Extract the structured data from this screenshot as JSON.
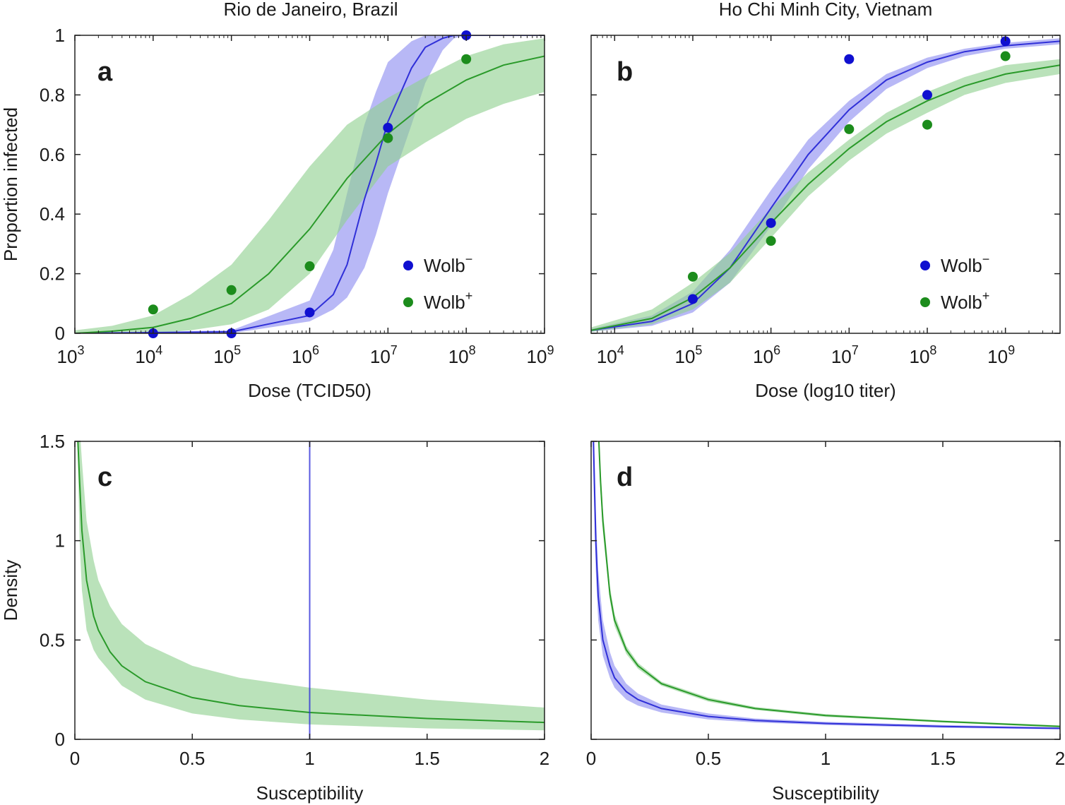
{
  "figure": {
    "col_titles": [
      "Rio de Janeiro, Brazil",
      "Ho Chi Minh City, Vietnam"
    ]
  },
  "colors": {
    "wolb_minus": "#1010d0",
    "wolb_plus": "#1c8c1c",
    "band_blue": "#8c8cf0",
    "band_green": "#8fd08f",
    "line_blue": "#3030d8",
    "line_green": "#2a9a2a"
  },
  "legend": {
    "wolb_minus": {
      "base": "Wolb",
      "sup": "−"
    },
    "wolb_plus": {
      "base": "Wolb",
      "sup": "+"
    }
  },
  "chart_data": [
    {
      "id": "a",
      "panel_label": "a",
      "type": "line",
      "title": "Rio de Janeiro, Brazil",
      "xlabel": "Dose (TCID50)",
      "ylabel": "Proportion infected",
      "xscale": "log10",
      "xlim": [
        1000,
        1000000000
      ],
      "ylim": [
        0,
        1
      ],
      "xticks": [
        {
          "base": "10",
          "exp": "3"
        },
        {
          "base": "10",
          "exp": "4"
        },
        {
          "base": "10",
          "exp": "5"
        },
        {
          "base": "10",
          "exp": "6"
        },
        {
          "base": "10",
          "exp": "7"
        },
        {
          "base": "10",
          "exp": "8"
        },
        {
          "base": "10",
          "exp": "9"
        }
      ],
      "xtick_values": [
        1000,
        10000,
        100000,
        1000000,
        10000000,
        100000000,
        1000000000
      ],
      "yticks": [
        "0",
        "0.2",
        "0.4",
        "0.6",
        "0.8",
        "1"
      ],
      "ytick_values": [
        0,
        0.2,
        0.4,
        0.6,
        0.8,
        1
      ],
      "legend_position": "lower-right",
      "series": [
        {
          "name": "Wolb−",
          "points": {
            "x": [
              10000,
              100000,
              1000000,
              10000000,
              100000000
            ],
            "y": [
              0.0,
              0.0,
              0.07,
              0.69,
              1.0
            ]
          },
          "fit": {
            "x": [
              1000,
              100000,
              1000000,
              2000000,
              3000000,
              5000000,
              7000000,
              10000000,
              20000000,
              30000000,
              50000000,
              70000000,
              100000000,
              1000000000
            ],
            "y": [
              0.0,
              0.005,
              0.06,
              0.13,
              0.23,
              0.45,
              0.57,
              0.71,
              0.89,
              0.96,
              0.99,
              1.0,
              1.0,
              1.0
            ]
          },
          "band_upper": [
            0.0,
            0.01,
            0.11,
            0.28,
            0.47,
            0.7,
            0.81,
            0.91,
            0.98,
            1.0,
            1.0,
            1.0,
            1.0,
            1.0
          ],
          "band_lower": [
            0.0,
            0.0,
            0.04,
            0.08,
            0.12,
            0.22,
            0.33,
            0.47,
            0.7,
            0.84,
            0.95,
            0.99,
            1.0,
            1.0
          ]
        },
        {
          "name": "Wolb+",
          "points": {
            "x": [
              10000,
              100000,
              1000000,
              10000000,
              100000000
            ],
            "y": [
              0.08,
              0.145,
              0.225,
              0.655,
              0.92
            ]
          },
          "fit": {
            "x": [
              1000,
              3000,
              10000,
              30000,
              100000,
              300000,
              1000000,
              3000000,
              10000000,
              30000000,
              100000000,
              300000000,
              1000000000
            ],
            "y": [
              0.0,
              0.007,
              0.02,
              0.05,
              0.1,
              0.2,
              0.35,
              0.52,
              0.67,
              0.77,
              0.85,
              0.9,
              0.93
            ]
          },
          "band_upper": [
            0.01,
            0.025,
            0.06,
            0.13,
            0.23,
            0.38,
            0.56,
            0.7,
            0.79,
            0.86,
            0.93,
            0.97,
            0.99
          ],
          "band_lower": [
            0.0,
            0.0,
            0.0,
            0.01,
            0.03,
            0.08,
            0.2,
            0.38,
            0.56,
            0.64,
            0.72,
            0.77,
            0.81
          ]
        }
      ]
    },
    {
      "id": "b",
      "panel_label": "b",
      "type": "line",
      "title": "Ho Chi Minh City, Vietnam",
      "xlabel": "Dose (log10 titer)",
      "ylabel": "",
      "xscale": "log10",
      "xlim": [
        5000,
        5000000000
      ],
      "ylim": [
        0,
        1
      ],
      "xticks": [
        {
          "base": "10",
          "exp": "4"
        },
        {
          "base": "10",
          "exp": "5"
        },
        {
          "base": "10",
          "exp": "6"
        },
        {
          "base": "10",
          "exp": "7"
        },
        {
          "base": "10",
          "exp": "8"
        },
        {
          "base": "10",
          "exp": "9"
        }
      ],
      "xtick_values": [
        10000,
        100000,
        1000000,
        10000000,
        100000000,
        1000000000
      ],
      "yticks": [],
      "ytick_values": [
        0,
        0.2,
        0.4,
        0.6,
        0.8,
        1
      ],
      "legend_position": "lower-right",
      "series": [
        {
          "name": "Wolb−",
          "points": {
            "x": [
              100000,
              1000000,
              10000000,
              100000000,
              1000000000
            ],
            "y": [
              0.115,
              0.37,
              0.92,
              0.8,
              0.98
            ]
          },
          "fit": {
            "x": [
              5000,
              30000,
              100000,
              300000,
              1000000,
              3000000,
              10000000,
              30000000,
              100000000,
              300000000,
              1000000000,
              5000000000
            ],
            "y": [
              0.01,
              0.04,
              0.1,
              0.22,
              0.42,
              0.6,
              0.75,
              0.85,
              0.91,
              0.945,
              0.965,
              0.98
            ]
          },
          "band_upper": [
            0.015,
            0.06,
            0.14,
            0.28,
            0.48,
            0.65,
            0.78,
            0.87,
            0.925,
            0.955,
            0.975,
            0.99
          ],
          "band_lower": [
            0.005,
            0.025,
            0.07,
            0.17,
            0.36,
            0.55,
            0.71,
            0.82,
            0.89,
            0.93,
            0.955,
            0.97
          ]
        },
        {
          "name": "Wolb+",
          "points": {
            "x": [
              100000,
              1000000,
              10000000,
              100000000,
              1000000000
            ],
            "y": [
              0.19,
              0.31,
              0.685,
              0.7,
              0.93
            ]
          },
          "fit": {
            "x": [
              5000,
              30000,
              100000,
              300000,
              1000000,
              3000000,
              10000000,
              30000000,
              100000000,
              300000000,
              1000000000,
              5000000000
            ],
            "y": [
              0.01,
              0.05,
              0.12,
              0.22,
              0.37,
              0.5,
              0.62,
              0.71,
              0.78,
              0.83,
              0.87,
              0.9
            ]
          },
          "band_upper": [
            0.02,
            0.08,
            0.17,
            0.27,
            0.42,
            0.54,
            0.65,
            0.74,
            0.81,
            0.86,
            0.9,
            0.92
          ],
          "band_lower": [
            0.005,
            0.03,
            0.08,
            0.17,
            0.32,
            0.46,
            0.58,
            0.67,
            0.74,
            0.8,
            0.84,
            0.87
          ]
        }
      ]
    },
    {
      "id": "c",
      "panel_label": "c",
      "type": "line",
      "title": "",
      "xlabel": "Susceptibility",
      "ylabel": "Density",
      "xscale": "linear",
      "xlim": [
        0,
        2
      ],
      "ylim": [
        0,
        1.5
      ],
      "xticks": [
        "0",
        "0.5",
        "1",
        "1.5",
        "2"
      ],
      "xtick_values": [
        0,
        0.5,
        1,
        1.5,
        2
      ],
      "yticks": [
        "0",
        "0.5",
        "1",
        "1.5"
      ],
      "ytick_values": [
        0,
        0.5,
        1,
        1.5
      ],
      "vline": {
        "name": "Wolb−",
        "x": 1
      },
      "series": [
        {
          "name": "Wolb+",
          "fit": {
            "x": [
              0.01,
              0.02,
              0.03,
              0.05,
              0.08,
              0.1,
              0.15,
              0.2,
              0.3,
              0.5,
              0.7,
              1.0,
              1.5,
              2.0
            ],
            "y": [
              1.6,
              1.3,
              1.05,
              0.8,
              0.62,
              0.55,
              0.44,
              0.37,
              0.29,
              0.21,
              0.17,
              0.135,
              0.105,
              0.085
            ]
          },
          "band_upper": [
            1.6,
            1.6,
            1.4,
            1.1,
            0.9,
            0.8,
            0.67,
            0.58,
            0.48,
            0.37,
            0.31,
            0.26,
            0.2,
            0.16
          ],
          "band_lower": [
            1.6,
            1.0,
            0.75,
            0.55,
            0.45,
            0.41,
            0.34,
            0.27,
            0.2,
            0.13,
            0.1,
            0.075,
            0.055,
            0.045
          ]
        }
      ]
    },
    {
      "id": "d",
      "panel_label": "d",
      "type": "line",
      "title": "",
      "xlabel": "Susceptibility",
      "ylabel": "",
      "xscale": "linear",
      "xlim": [
        0,
        2
      ],
      "ylim": [
        0,
        1.5
      ],
      "xticks": [
        "0",
        "0.5",
        "1",
        "1.5",
        "2"
      ],
      "xtick_values": [
        0,
        0.5,
        1,
        1.5,
        2
      ],
      "yticks": [],
      "ytick_values": [
        0,
        0.5,
        1,
        1.5
      ],
      "series": [
        {
          "name": "Wolb−",
          "fit": {
            "x": [
              0.005,
              0.01,
              0.02,
              0.03,
              0.05,
              0.08,
              0.1,
              0.15,
              0.2,
              0.3,
              0.5,
              0.7,
              1.0,
              1.5,
              2.0
            ],
            "y": [
              1.6,
              1.5,
              1.0,
              0.72,
              0.5,
              0.37,
              0.31,
              0.24,
              0.2,
              0.155,
              0.115,
              0.095,
              0.08,
              0.065,
              0.055
            ]
          },
          "band_upper": [
            1.6,
            1.6,
            1.15,
            0.85,
            0.6,
            0.44,
            0.37,
            0.28,
            0.23,
            0.175,
            0.13,
            0.105,
            0.088,
            0.072,
            0.06
          ],
          "band_lower": [
            1.6,
            1.3,
            0.85,
            0.6,
            0.42,
            0.31,
            0.26,
            0.2,
            0.17,
            0.135,
            0.1,
            0.085,
            0.072,
            0.058,
            0.05
          ]
        },
        {
          "name": "Wolb+",
          "fit": {
            "x": [
              0.03,
              0.04,
              0.05,
              0.08,
              0.1,
              0.15,
              0.2,
              0.3,
              0.5,
              0.7,
              1.0,
              1.5,
              2.0
            ],
            "y": [
              1.6,
              1.3,
              1.1,
              0.73,
              0.6,
              0.45,
              0.37,
              0.28,
              0.2,
              0.155,
              0.12,
              0.09,
              0.065
            ]
          },
          "band_upper": [
            1.6,
            1.37,
            1.16,
            0.77,
            0.63,
            0.47,
            0.385,
            0.29,
            0.21,
            0.163,
            0.127,
            0.095,
            0.07
          ],
          "band_lower": [
            1.55,
            1.24,
            1.05,
            0.7,
            0.57,
            0.43,
            0.355,
            0.27,
            0.19,
            0.148,
            0.113,
            0.085,
            0.06
          ]
        }
      ]
    }
  ]
}
